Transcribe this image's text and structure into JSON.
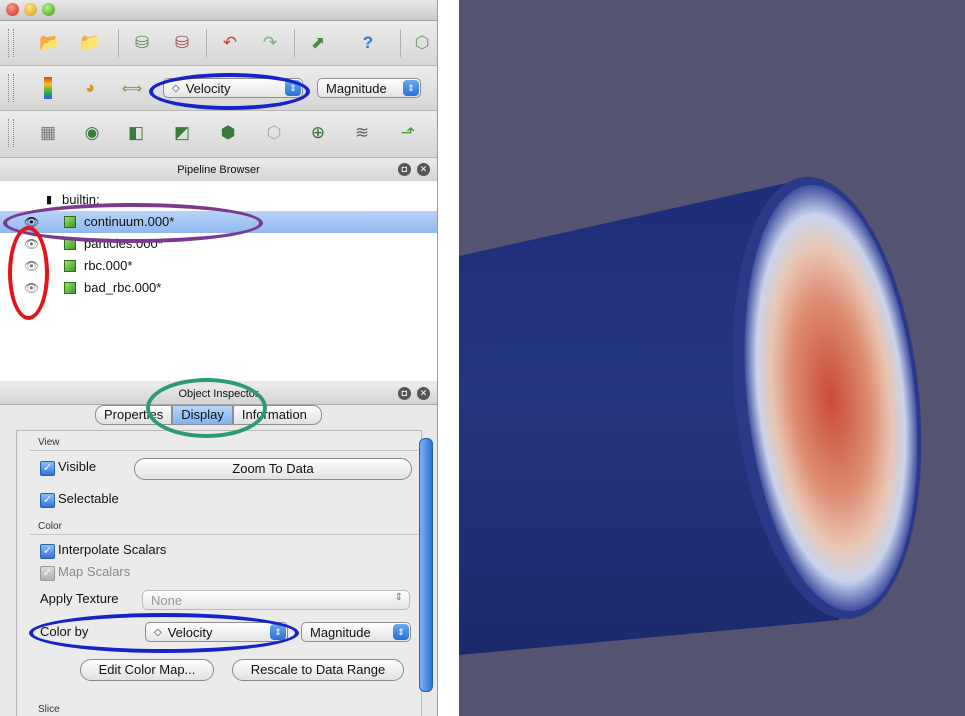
{
  "toolbar_icons": [
    "open-icon",
    "recent-icon",
    "server-connect-icon",
    "server-disconnect-icon",
    "undo-icon",
    "redo-icon",
    "camera-icon",
    "help-icon",
    "reset-view-icon"
  ],
  "color_toolbar": {
    "icons": [
      "color-legend-icon",
      "color-map-editor-icon",
      "rescale-range-icon"
    ],
    "array_value": "Velocity",
    "component_value": "Magnitude"
  },
  "filter_icons": [
    "calculator-icon",
    "contour-icon",
    "clip-icon",
    "slice-icon",
    "threshold-icon",
    "extract-subset-icon",
    "glyph-icon",
    "stream-tracer-icon",
    "warp-icon"
  ],
  "pipeline_browser": {
    "title": "Pipeline Browser",
    "root": "builtin:",
    "items": [
      {
        "label": "continuum.000*",
        "visible": true,
        "selected": true
      },
      {
        "label": "particles.000*",
        "visible": false,
        "selected": false
      },
      {
        "label": "rbc.000*",
        "visible": false,
        "selected": false
      },
      {
        "label": "bad_rbc.000*",
        "visible": false,
        "selected": false
      }
    ]
  },
  "object_inspector": {
    "title": "Object Inspector",
    "tabs": [
      "Properties",
      "Display",
      "Information"
    ],
    "active_tab": "Display",
    "view_section": "View",
    "visible_label": "Visible",
    "zoom_button": "Zoom To Data",
    "selectable_label": "Selectable",
    "color_section": "Color",
    "interpolate_label": "Interpolate Scalars",
    "map_scalars_label": "Map Scalars",
    "apply_texture_label": "Apply Texture",
    "apply_texture_value": "None",
    "color_by_label": "Color by",
    "color_by_value": "Velocity",
    "color_by_component": "Magnitude",
    "edit_color_map_button": "Edit Color Map...",
    "rescale_button": "Rescale to Data Range",
    "slice_section": "Slice"
  },
  "colors": {
    "highlight_blue": "#1722c9",
    "highlight_purple": "#7a3a8e",
    "highlight_red": "#e2151b",
    "highlight_green": "#2f9a6e",
    "viewport_bg": "#545370",
    "cylinder": "#24347e"
  }
}
